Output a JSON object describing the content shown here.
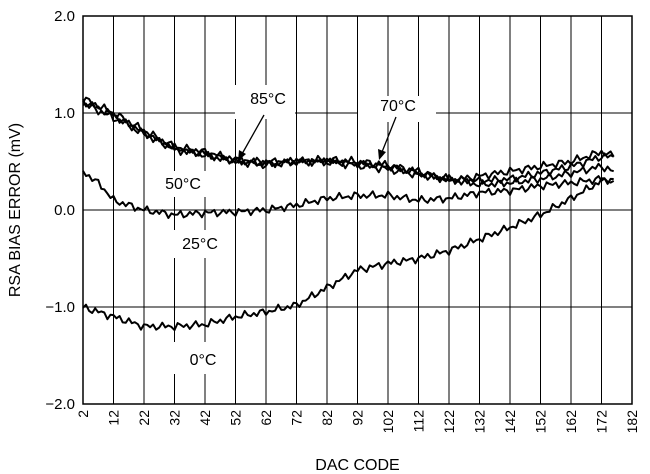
{
  "chart_data": {
    "type": "line",
    "title": "",
    "xlabel": "DAC CODE",
    "ylabel": "RSA BIAS ERROR (mV)",
    "xlim": [
      2,
      182
    ],
    "ylim": [
      -2.0,
      2.0
    ],
    "x_ticks": [
      "2",
      "12",
      "22",
      "32",
      "42",
      "52",
      "62",
      "72",
      "82",
      "92",
      "102",
      "112",
      "122",
      "132",
      "142",
      "152",
      "162",
      "172",
      "182"
    ],
    "y_ticks": [
      "2.0",
      "1.0",
      "0.0",
      "−1.0",
      "−2.0"
    ],
    "grid": true,
    "legend": "none",
    "annotations": [
      {
        "text": "85°C",
        "x": 52,
        "y": 1.1
      },
      {
        "text": "70°C",
        "x": 102,
        "y": 1.0
      },
      {
        "text": "50°C",
        "x": 27,
        "y": 0.25
      },
      {
        "text": "25°C",
        "x": 34,
        "y": -0.35
      },
      {
        "text": "0°C",
        "x": 38,
        "y": -1.55
      }
    ],
    "series": [
      {
        "name": "85°C",
        "x": [
          2,
          12,
          22,
          32,
          42,
          52,
          62,
          72,
          82,
          92,
          102,
          112,
          122,
          132,
          142,
          152,
          162,
          172,
          176
        ],
        "y": [
          1.15,
          1.0,
          0.82,
          0.65,
          0.6,
          0.52,
          0.48,
          0.5,
          0.5,
          0.48,
          0.45,
          0.38,
          0.32,
          0.3,
          0.32,
          0.38,
          0.45,
          0.55,
          0.55
        ]
      },
      {
        "name": "70°C",
        "x": [
          2,
          12,
          22,
          32,
          42,
          52,
          62,
          72,
          82,
          92,
          102,
          112,
          122,
          132,
          142,
          152,
          162,
          172,
          176
        ],
        "y": [
          1.1,
          0.95,
          0.8,
          0.62,
          0.58,
          0.5,
          0.46,
          0.5,
          0.52,
          0.5,
          0.46,
          0.4,
          0.3,
          0.35,
          0.4,
          0.45,
          0.5,
          0.6,
          0.55
        ]
      },
      {
        "name": "50°C",
        "x": [
          2,
          12,
          22,
          32,
          42,
          52,
          62,
          72,
          82,
          92,
          102,
          112,
          122,
          132,
          142,
          152,
          162,
          172,
          176
        ],
        "y": [
          1.12,
          0.98,
          0.78,
          0.64,
          0.56,
          0.5,
          0.5,
          0.5,
          0.5,
          0.46,
          0.42,
          0.36,
          0.32,
          0.26,
          0.28,
          0.32,
          0.38,
          0.45,
          0.4
        ]
      },
      {
        "name": "25°C",
        "x": [
          2,
          8,
          12,
          22,
          32,
          42,
          52,
          62,
          72,
          82,
          92,
          102,
          112,
          122,
          132,
          142,
          152,
          162,
          172,
          176
        ],
        "y": [
          0.4,
          0.25,
          0.1,
          0.0,
          -0.05,
          -0.03,
          -0.02,
          0.0,
          0.05,
          0.12,
          0.15,
          0.15,
          0.1,
          0.12,
          0.18,
          0.2,
          0.25,
          0.28,
          0.32,
          0.3
        ]
      },
      {
        "name": "0°C",
        "x": [
          2,
          12,
          22,
          32,
          42,
          52,
          62,
          72,
          82,
          92,
          102,
          112,
          122,
          132,
          142,
          152,
          162,
          172,
          176
        ],
        "y": [
          -1.0,
          -1.1,
          -1.2,
          -1.2,
          -1.18,
          -1.1,
          -1.05,
          -0.98,
          -0.8,
          -0.62,
          -0.55,
          -0.5,
          -0.42,
          -0.3,
          -0.18,
          -0.05,
          0.12,
          0.3,
          0.32
        ]
      }
    ]
  }
}
